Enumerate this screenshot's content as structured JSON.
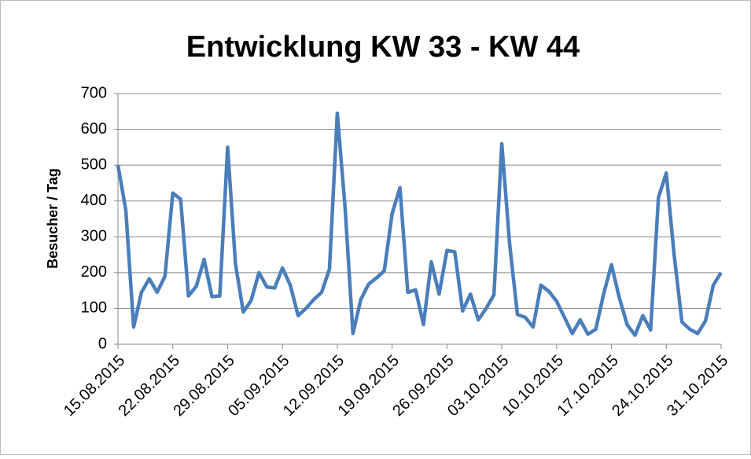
{
  "chart_data": {
    "type": "line",
    "title": "Entwicklung KW 33 - KW 44",
    "y_label": "Besucher / Tag",
    "categories": [
      "15.08.2015",
      null,
      null,
      null,
      null,
      null,
      null,
      "22.08.2015",
      null,
      null,
      null,
      null,
      null,
      null,
      "29.08.2015",
      null,
      null,
      null,
      null,
      null,
      null,
      "05.09.2015",
      null,
      null,
      null,
      null,
      null,
      null,
      "12.09.2015",
      null,
      null,
      null,
      null,
      null,
      null,
      "19.09.2015",
      null,
      null,
      null,
      null,
      null,
      null,
      "26.09.2015",
      null,
      null,
      null,
      null,
      null,
      null,
      "03.10.2015",
      null,
      null,
      null,
      null,
      null,
      null,
      "10.10.2015",
      null,
      null,
      null,
      null,
      null,
      null,
      "17.10.2015",
      null,
      null,
      null,
      null,
      null,
      null,
      "24.10.2015",
      null,
      null,
      null,
      null,
      null,
      null,
      "31.10.2015"
    ],
    "series": [
      {
        "name": "Besucher",
        "color": "#4a7ebb",
        "values": [
          500,
          375,
          48,
          145,
          183,
          145,
          190,
          422,
          405,
          135,
          162,
          237,
          133,
          135,
          550,
          225,
          90,
          122,
          200,
          160,
          157,
          213,
          165,
          80,
          100,
          125,
          145,
          210,
          645,
          380,
          30,
          125,
          168,
          185,
          205,
          365,
          437,
          145,
          152,
          55,
          230,
          140,
          262,
          258,
          93,
          140,
          68,
          100,
          138,
          560,
          280,
          83,
          75,
          48,
          165,
          148,
          120,
          75,
          30,
          68,
          28,
          42,
          140,
          222,
          130,
          55,
          25,
          80,
          40,
          410,
          478,
          250,
          62,
          42,
          30,
          65,
          165,
          200
        ]
      }
    ],
    "ylim": [
      0,
      700
    ],
    "yticks": [
      0,
      100,
      200,
      300,
      400,
      500,
      600,
      700
    ],
    "grid": true
  }
}
